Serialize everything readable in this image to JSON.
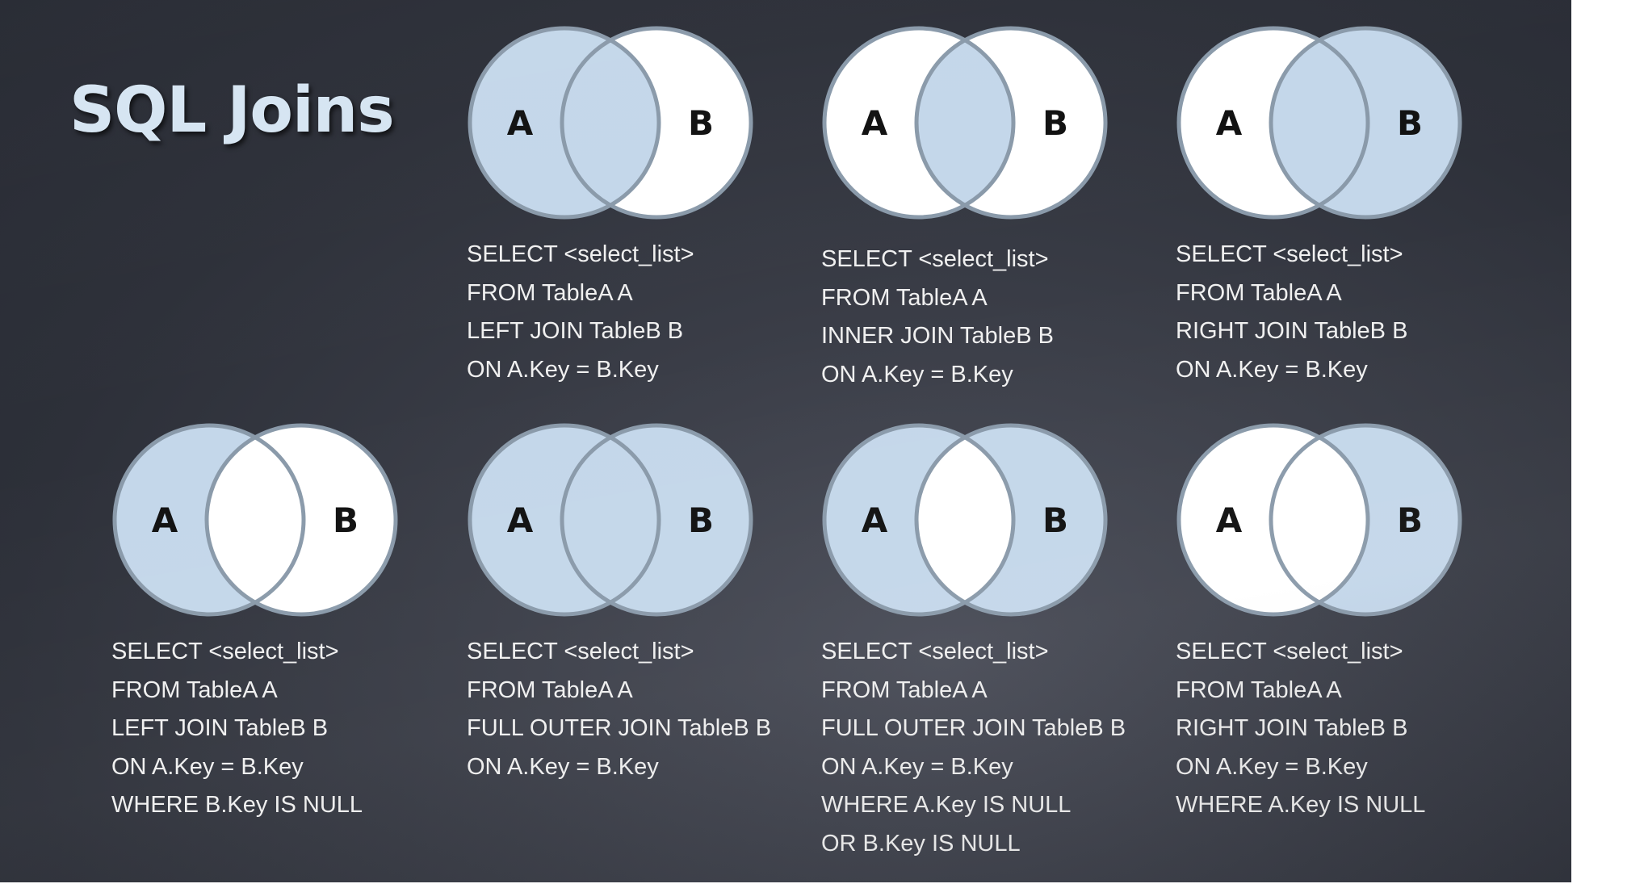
{
  "title": "SQL Joins",
  "colors": {
    "fill": "#c4d7ea",
    "empty": "#ffffff",
    "stroke": "#8a9aaa",
    "title": "#d6e5f2",
    "code_text": "#f0f0f0"
  },
  "circle_labels": {
    "a": "A",
    "b": "B"
  },
  "joins": [
    {
      "id": "left-join",
      "regions": {
        "a_only": true,
        "overlap": true,
        "b_only": false
      },
      "sql": [
        "SELECT <select_list>",
        "FROM TableA A",
        "LEFT JOIN TableB B",
        "ON A.Key = B.Key"
      ]
    },
    {
      "id": "inner-join",
      "regions": {
        "a_only": false,
        "overlap": true,
        "b_only": false
      },
      "sql": [
        "SELECT <select_list>",
        "FROM TableA A",
        "INNER JOIN TableB B",
        "ON A.Key = B.Key"
      ]
    },
    {
      "id": "right-join",
      "regions": {
        "a_only": false,
        "overlap": true,
        "b_only": true
      },
      "sql": [
        "SELECT <select_list>",
        "FROM TableA A",
        "RIGHT JOIN TableB B",
        "ON A.Key = B.Key"
      ]
    },
    {
      "id": "left-excl-join",
      "regions": {
        "a_only": true,
        "overlap": false,
        "b_only": false
      },
      "sql": [
        "SELECT <select_list>",
        "FROM TableA A",
        "LEFT JOIN TableB B",
        "ON A.Key = B.Key",
        "WHERE B.Key IS NULL"
      ]
    },
    {
      "id": "full-outer-join",
      "regions": {
        "a_only": true,
        "overlap": true,
        "b_only": true
      },
      "sql": [
        "SELECT <select_list>",
        "FROM TableA A",
        "FULL OUTER JOIN TableB B",
        "ON A.Key = B.Key"
      ]
    },
    {
      "id": "outer-excl-join",
      "regions": {
        "a_only": true,
        "overlap": false,
        "b_only": true
      },
      "sql": [
        "SELECT <select_list>",
        "FROM TableA A",
        "FULL OUTER JOIN TableB B",
        "ON A.Key = B.Key",
        "WHERE A.Key IS NULL",
        "OR B.Key IS NULL"
      ]
    },
    {
      "id": "right-excl-join",
      "regions": {
        "a_only": false,
        "overlap": false,
        "b_only": true
      },
      "sql": [
        "SELECT <select_list>",
        "FROM TableA A",
        "RIGHT JOIN TableB B",
        "ON A.Key = B.Key",
        "WHERE A.Key IS NULL"
      ]
    }
  ]
}
